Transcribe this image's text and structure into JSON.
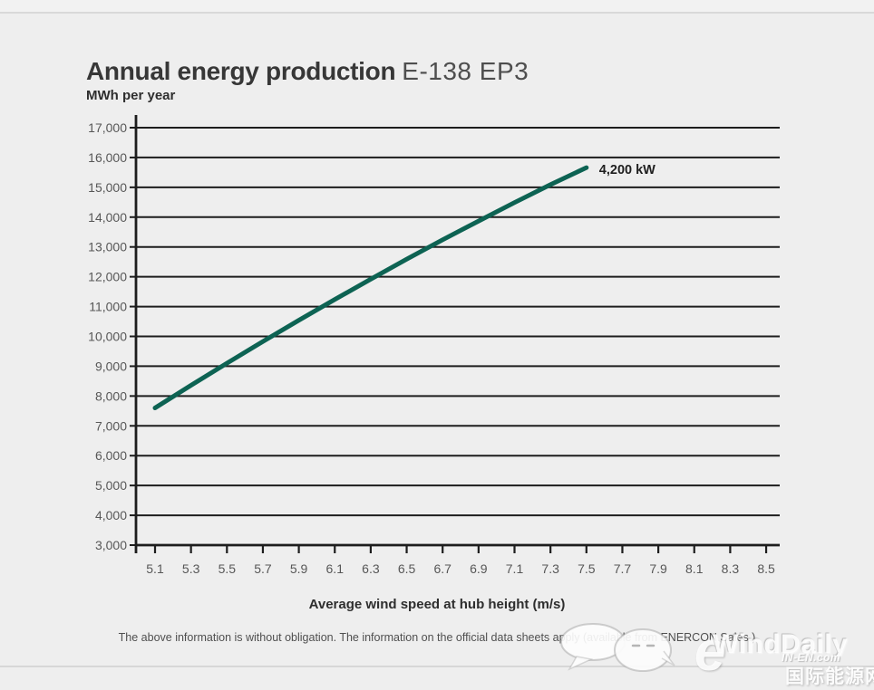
{
  "page": {
    "title_main": "Annual energy production",
    "title_model": "E-138 EP3",
    "footer_disclaimer": "The above information is without obligation. The information on the official data sheets apply (available from ENERCON Sales.)"
  },
  "chart_data": {
    "type": "line",
    "title": "Annual energy production E-138 EP3",
    "ylabel": "MWh per year",
    "xlabel": "Average wind speed at hub height (m/s)",
    "ylim": [
      3000,
      17000
    ],
    "ytick_step": 1000,
    "y_ticks": [
      "3,000",
      "4,000",
      "5,000",
      "6,000",
      "7,000",
      "8,000",
      "9,000",
      "10,000",
      "11,000",
      "12,000",
      "13,000",
      "14,000",
      "15,000",
      "16,000",
      "17,000"
    ],
    "x_ticks": [
      "5.1",
      "5.3",
      "5.5",
      "5.7",
      "5.9",
      "6.1",
      "6.3",
      "6.5",
      "6.7",
      "6.9",
      "7.1",
      "7.3",
      "7.5",
      "7.7",
      "7.9",
      "8.1",
      "8.3",
      "8.5"
    ],
    "grid": "horizontal",
    "grid_color": "#1d1d1d",
    "line_color": "#0d6353",
    "legend_position": "inline-annotation",
    "series": [
      {
        "name": "4,200 kW",
        "x": [
          5.1,
          5.3,
          5.5,
          5.7,
          5.9,
          6.1,
          6.3,
          6.5,
          6.7,
          6.9,
          7.1,
          7.3,
          7.5
        ],
        "values": [
          7600,
          8360,
          9100,
          9830,
          10540,
          11240,
          11920,
          12590,
          13240,
          13870,
          14490,
          15090,
          15660
        ]
      }
    ]
  },
  "watermark": {
    "brand": "WindDaily",
    "site": "IN-EN.com",
    "site_cn": "国际能源网"
  }
}
